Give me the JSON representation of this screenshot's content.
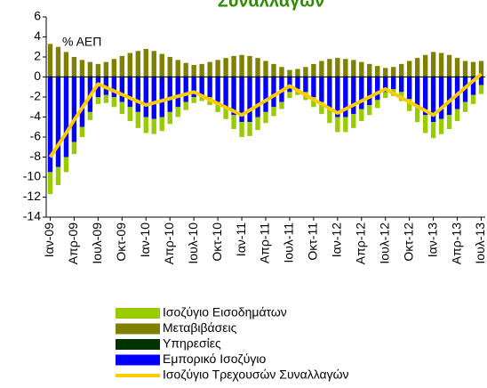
{
  "chart_data": {
    "type": "bar",
    "title": "Συναλλαγών",
    "annotation": "% ΑΕΠ",
    "categories": [
      "Ιαν-09",
      null,
      null,
      "Απρ-09",
      null,
      null,
      "Ιουλ-09",
      null,
      null,
      "Οκτ-09",
      null,
      null,
      "Ιαν-10",
      null,
      null,
      "Απρ-10",
      null,
      null,
      "Ιουλ-10",
      null,
      null,
      "Οκτ-10",
      null,
      null,
      "Ιαν-11",
      null,
      null,
      "Απρ-11",
      null,
      null,
      "Ιουλ-11",
      null,
      null,
      "Οκτ-11",
      null,
      null,
      "Ιαν-12",
      null,
      null,
      "Απρ-12",
      null,
      null,
      "Ιουλ-12",
      null,
      null,
      "Οκτ-12",
      null,
      null,
      "Ιαν-13",
      null,
      null,
      "Απρ-13",
      null,
      null,
      "Ιουλ-13"
    ],
    "series": [
      {
        "name": "Ισοζύγιο Εισοδημάτων",
        "type": "bar",
        "color": "#99cc00",
        "values": [
          -2.2,
          -1.8,
          -1.5,
          -1.2,
          -1,
          -0.8,
          -0.7,
          -0.8,
          -1,
          -1.2,
          -1.4,
          -1.6,
          -1.6,
          -1.5,
          -1.4,
          -1.2,
          -1,
          -0.8,
          -0.6,
          -0.6,
          -0.8,
          -1,
          -1.2,
          -1.4,
          -1.5,
          -1.4,
          -1.3,
          -1.1,
          -0.9,
          -0.7,
          -0.6,
          -0.6,
          -0.8,
          -1,
          -1.2,
          -1.4,
          -1.5,
          -1.5,
          -1.4,
          -1.2,
          -1,
          -0.8,
          -0.6,
          -0.7,
          -0.9,
          -1.2,
          -1.5,
          -1.8,
          -1.6,
          -1.5,
          -1.4,
          -1.2,
          -1,
          -0.9,
          -0.9
        ]
      },
      {
        "name": "Μεταβιβάσεις",
        "type": "bar",
        "color": "#808000",
        "values": [
          3.2,
          2.9,
          2.4,
          1.9,
          1.6,
          1.4,
          1.2,
          1.4,
          1.7,
          2,
          2.3,
          2.5,
          2.7,
          2.5,
          2.2,
          1.9,
          1.6,
          1.3,
          1.1,
          1.2,
          1.4,
          1.6,
          1.8,
          2,
          2.1,
          2,
          1.8,
          1.5,
          1.2,
          0.9,
          0.6,
          0.7,
          0.9,
          1.2,
          1.5,
          1.7,
          1.8,
          1.7,
          1.6,
          1.4,
          1.2,
          1,
          0.8,
          0.9,
          1.2,
          1.5,
          1.8,
          2.1,
          2.4,
          2.3,
          2.1,
          1.8,
          1.5,
          1.4,
          1.5
        ]
      },
      {
        "name": "Υπηρεσίες",
        "type": "bar",
        "color": "#003300",
        "values": [
          0.1,
          0.1,
          0.1,
          0.1,
          0.1,
          0.1,
          0.1,
          0.1,
          0.1,
          0.1,
          0.1,
          0.1,
          0.1,
          0.1,
          0.1,
          0.1,
          0.1,
          0.1,
          0.1,
          0.1,
          0.1,
          0.1,
          0.1,
          0.1,
          0.1,
          0.1,
          0.1,
          0.1,
          0.1,
          0.1,
          0.1,
          0.1,
          0.1,
          0.1,
          0.1,
          0.1,
          0.1,
          0.1,
          0.1,
          0.1,
          0.1,
          0.1,
          0.1,
          0.1,
          0.1,
          0.1,
          0.1,
          0.1,
          0.1,
          0.1,
          0.1,
          0.1,
          0.1,
          0.1,
          0.1
        ]
      },
      {
        "name": "Εμπορικό Ισοζύγιο",
        "type": "bar",
        "color": "#0000ff",
        "values": [
          -9.5,
          -9,
          -8,
          -6.5,
          -5,
          -3.5,
          -2,
          -1.8,
          -2,
          -2.5,
          -3,
          -3.5,
          -4,
          -4.2,
          -4,
          -3.5,
          -3,
          -2.5,
          -2,
          -1.8,
          -2,
          -2.5,
          -3,
          -3.8,
          -4.5,
          -4.5,
          -4,
          -3.5,
          -3,
          -2.5,
          -1.5,
          -1.2,
          -1.5,
          -2,
          -2.5,
          -3.2,
          -4,
          -4,
          -3.7,
          -3.2,
          -2.8,
          -2.3,
          -1.5,
          -1.2,
          -1.5,
          -2.2,
          -3,
          -3.8,
          -4.5,
          -4.2,
          -3.8,
          -3.2,
          -2.5,
          -1.8,
          -0.8
        ]
      },
      {
        "name": "Ισοζύγιο Τρεχουσών Συναλλαγών",
        "type": "line",
        "color": "#ffcc00",
        "values": [
          -8,
          -6.8,
          -5.6,
          -4.3,
          -3.1,
          -1.9,
          -0.7,
          -1.05,
          -1.4,
          -1.75,
          -2.1,
          -2.45,
          -2.8,
          -2.58,
          -2.37,
          -2.15,
          -1.93,
          -1.72,
          -1.5,
          -1.88,
          -2.27,
          -2.65,
          -3.03,
          -3.42,
          -3.8,
          -3.32,
          -2.83,
          -2.35,
          -1.87,
          -1.38,
          -0.9,
          -1.35,
          -1.8,
          -2.25,
          -2.7,
          -3.15,
          -3.6,
          -3.2,
          -2.8,
          -2.4,
          -2,
          -1.6,
          -1.2,
          -1.63,
          -2.07,
          -2.5,
          -2.93,
          -3.37,
          -3.8,
          -3.12,
          -2.43,
          -1.75,
          -1.07,
          -0.38,
          0.3
        ]
      }
    ],
    "ylim": [
      -14,
      6
    ],
    "yticks": [
      6,
      4,
      2,
      0,
      -2,
      -4,
      -6,
      -8,
      -10,
      -12,
      -14
    ],
    "grid": false,
    "legend": "bottom"
  }
}
